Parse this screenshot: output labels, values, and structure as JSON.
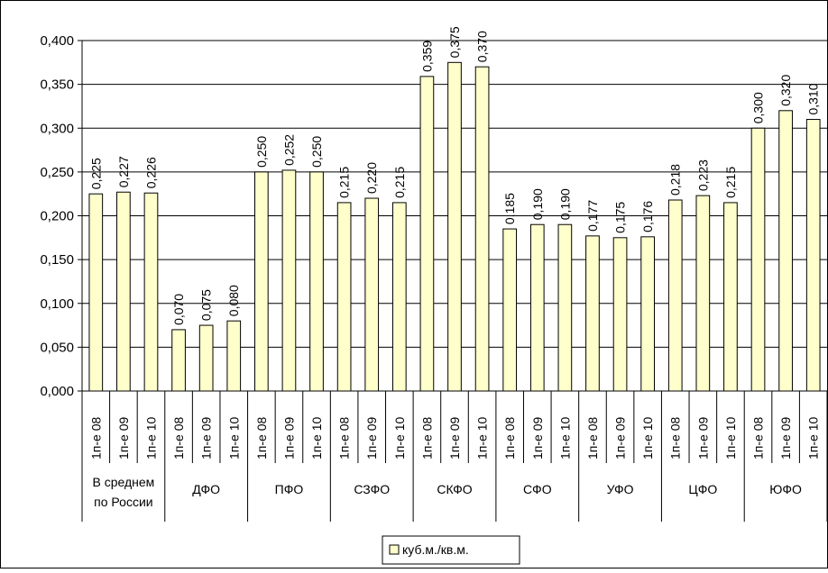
{
  "chart_data": {
    "type": "bar",
    "title": "",
    "xlabel": "",
    "ylabel": "",
    "ylim": [
      0,
      0.4
    ],
    "yticks": [
      "0,000",
      "0,050",
      "0,100",
      "0,150",
      "0,200",
      "0,250",
      "0,300",
      "0,350",
      "0,400"
    ],
    "grid": true,
    "legend_position": "bottom-center",
    "colors": {
      "bar_fill": "#FFFFCC",
      "bar_stroke": "#000000",
      "grid": "#000000"
    },
    "groups": [
      {
        "name": "В среднем по России",
        "name_lines": [
          "В среднем",
          "по России"
        ],
        "categories": [
          "1п-е 08",
          "1п-е 09",
          "1п-е 10"
        ],
        "values": [
          0.225,
          0.227,
          0.226
        ],
        "labels": [
          "0,225",
          "0,227",
          "0,226"
        ]
      },
      {
        "name": "ДФО",
        "name_lines": [
          "ДФО"
        ],
        "categories": [
          "1п-е 08",
          "1п-е 09",
          "1п-е 10"
        ],
        "values": [
          0.07,
          0.075,
          0.08
        ],
        "labels": [
          "0,070",
          "0,075",
          "0,080"
        ]
      },
      {
        "name": "ПФО",
        "name_lines": [
          "ПФО"
        ],
        "categories": [
          "1п-е 08",
          "1п-е 09",
          "1п-е 10"
        ],
        "values": [
          0.25,
          0.252,
          0.25
        ],
        "labels": [
          "0,250",
          "0,252",
          "0,250"
        ]
      },
      {
        "name": "СЗФО",
        "name_lines": [
          "СЗФО"
        ],
        "categories": [
          "1п-е 08",
          "1п-е 09",
          "1п-е 10"
        ],
        "values": [
          0.215,
          0.22,
          0.215
        ],
        "labels": [
          "0,215",
          "0,220",
          "0,215"
        ]
      },
      {
        "name": "СКФО",
        "name_lines": [
          "СКФО"
        ],
        "categories": [
          "1п-е 08",
          "1п-е 09",
          "1п-е 10"
        ],
        "values": [
          0.359,
          0.375,
          0.37
        ],
        "labels": [
          "0,359",
          "0,375",
          "0,370"
        ]
      },
      {
        "name": "СФО",
        "name_lines": [
          "СФО"
        ],
        "categories": [
          "1п-е 08",
          "1п-е 09",
          "1п-е 10"
        ],
        "values": [
          0.185,
          0.19,
          0.19
        ],
        "labels": [
          "0,185",
          "0,190",
          "0,190"
        ]
      },
      {
        "name": "УФО",
        "name_lines": [
          "УФО"
        ],
        "categories": [
          "1п-е 08",
          "1п-е 09",
          "1п-е 10"
        ],
        "values": [
          0.177,
          0.175,
          0.176
        ],
        "labels": [
          "0,177",
          "0,175",
          "0,176"
        ]
      },
      {
        "name": "ЦФО",
        "name_lines": [
          "ЦФО"
        ],
        "categories": [
          "1п-е 08",
          "1п-е 09",
          "1п-е 10"
        ],
        "values": [
          0.218,
          0.223,
          0.215
        ],
        "labels": [
          "0,218",
          "0,223",
          "0,215"
        ]
      },
      {
        "name": "ЮФО",
        "name_lines": [
          "ЮФО"
        ],
        "categories": [
          "1п-е 08",
          "1п-е 09",
          "1п-е 10"
        ],
        "values": [
          0.3,
          0.32,
          0.31
        ],
        "labels": [
          "0,300",
          "0,320",
          "0,310"
        ]
      }
    ],
    "series": [
      {
        "name": "куб.м./кв.м."
      }
    ]
  }
}
